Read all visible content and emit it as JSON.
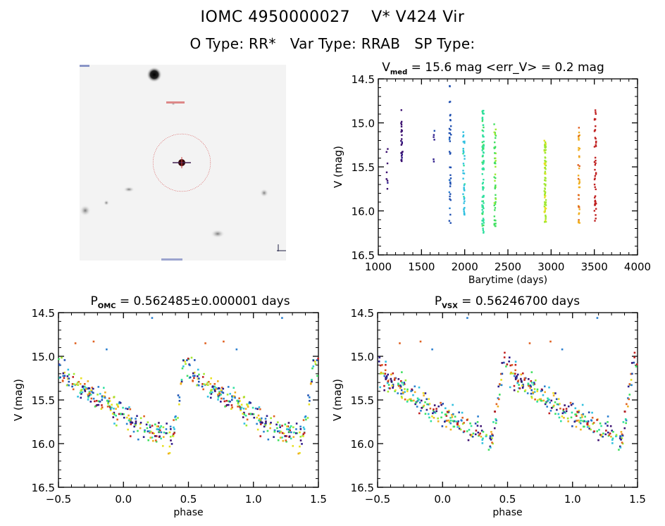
{
  "header": {
    "title": "IOMC 4950000027    V* V424 Vir",
    "subtitle": "O Type: RR*   Var Type: RRAB   SP Type:"
  },
  "image_panel": {
    "description": "Sky finder chart, grayscale, target marked with red dotted circle and crosshair",
    "marker_color": "#cc2222"
  },
  "colors": {
    "colormap": [
      "#3b0f6f",
      "#2c1b8a",
      "#1f4fb0",
      "#2a7fd0",
      "#30c0e0",
      "#30e0a0",
      "#40e060",
      "#a0e830",
      "#e8e020",
      "#f0b020",
      "#e06020",
      "#c02020"
    ]
  },
  "chart_data": [
    {
      "id": "lightcurve",
      "type": "scatter",
      "title_main": "V",
      "title_sub": "med",
      "title_rest": " = 15.6 mag <err_V> = 0.2 mag",
      "xlabel": "Barytime (days)",
      "ylabel": "V (mag)",
      "xlim": [
        1000,
        4000
      ],
      "ylim": [
        16.5,
        14.5
      ],
      "y_inverted": true,
      "xticks": [
        1000,
        1500,
        2000,
        2500,
        3000,
        3500,
        4000
      ],
      "xtick_labels": [
        "1000",
        "1500",
        "2000",
        "2500",
        "3000",
        "3500",
        "4000"
      ],
      "yticks": [
        14.5,
        15.0,
        15.5,
        16.0,
        16.5
      ],
      "ytick_labels": [
        "14.5",
        "15.0",
        "15.5",
        "16.0",
        "16.5"
      ],
      "groups": [
        {
          "x": 1100,
          "color_index": 0,
          "ymin": 15.2,
          "ymax": 15.75,
          "n": 8
        },
        {
          "x": 1270,
          "color_index": 0,
          "ymin": 14.85,
          "ymax": 15.45,
          "n": 24
        },
        {
          "x": 1640,
          "color_index": 1,
          "ymin": 15.05,
          "ymax": 15.5,
          "n": 6
        },
        {
          "x": 1830,
          "color_index": 2,
          "ymin": 14.57,
          "ymax": 16.15,
          "n": 40
        },
        {
          "x": 1990,
          "color_index": 4,
          "ymin": 15.1,
          "ymax": 16.05,
          "n": 40
        },
        {
          "x": 2210,
          "color_index": 5,
          "ymin": 14.85,
          "ymax": 16.25,
          "n": 90
        },
        {
          "x": 2350,
          "color_index": 6,
          "ymin": 15.0,
          "ymax": 16.25,
          "n": 50
        },
        {
          "x": 2930,
          "color_index": 7,
          "ymin": 15.2,
          "ymax": 16.15,
          "n": 70
        },
        {
          "x": 3320,
          "color_index": 9,
          "ymin": 15.05,
          "ymax": 16.2,
          "n": 40
        },
        {
          "x": 3510,
          "color_index": 11,
          "ymin": 14.85,
          "ymax": 16.15,
          "n": 45
        }
      ],
      "grid": false
    },
    {
      "id": "phase-omc",
      "type": "scatter",
      "title_main": "P",
      "title_sub": "OMC",
      "title_rest": " = 0.562485±0.000001 days",
      "xlabel": "phase",
      "ylabel": "V (mag)",
      "xlim": [
        -0.5,
        1.5
      ],
      "ylim": [
        16.5,
        14.5
      ],
      "y_inverted": true,
      "xticks": [
        -0.5,
        0.0,
        0.5,
        1.0,
        1.5
      ],
      "xtick_labels": [
        "−0.5",
        "0.0",
        "0.5",
        "1.0",
        "1.5"
      ],
      "yticks": [
        14.5,
        15.0,
        15.5,
        16.0,
        16.5
      ],
      "ytick_labels": [
        "14.5",
        "15.0",
        "15.5",
        "16.0",
        "16.5"
      ],
      "period_days": 0.562485,
      "light_curve_shape": {
        "max_phase": 0.47,
        "max_mag": 15.05,
        "min_mag": 15.95,
        "rise_start_phase": 0.38
      },
      "outliers": [
        {
          "phase": 0.22,
          "mag": 14.56
        },
        {
          "phase": -0.23,
          "mag": 14.83
        },
        {
          "phase": -0.37,
          "mag": 14.85
        },
        {
          "phase": -0.13,
          "mag": 14.92
        }
      ],
      "grid": false
    },
    {
      "id": "phase-vsx",
      "type": "scatter",
      "title_main": "P",
      "title_sub": "VSX",
      "title_rest": " = 0.56246700 days",
      "xlabel": "phase",
      "ylabel": "V (mag)",
      "xlim": [
        -0.5,
        1.5
      ],
      "ylim": [
        16.5,
        14.5
      ],
      "y_inverted": true,
      "xticks": [
        -0.5,
        0.0,
        0.5,
        1.0,
        1.5
      ],
      "xtick_labels": [
        "−0.5",
        "0.0",
        "0.5",
        "1.0",
        "1.5"
      ],
      "yticks": [
        14.5,
        15.0,
        15.5,
        16.0,
        16.5
      ],
      "ytick_labels": [
        "14.5",
        "15.0",
        "15.5",
        "16.0",
        "16.5"
      ],
      "period_days": 0.562467,
      "light_curve_shape": {
        "max_phase": 0.47,
        "max_mag": 15.05,
        "min_mag": 15.95,
        "rise_start_phase": 0.38
      },
      "outliers": [
        {
          "phase": 0.19,
          "mag": 14.56
        },
        {
          "phase": -0.17,
          "mag": 14.83
        },
        {
          "phase": -0.33,
          "mag": 14.85
        },
        {
          "phase": -0.08,
          "mag": 14.92
        }
      ],
      "grid": false
    }
  ]
}
